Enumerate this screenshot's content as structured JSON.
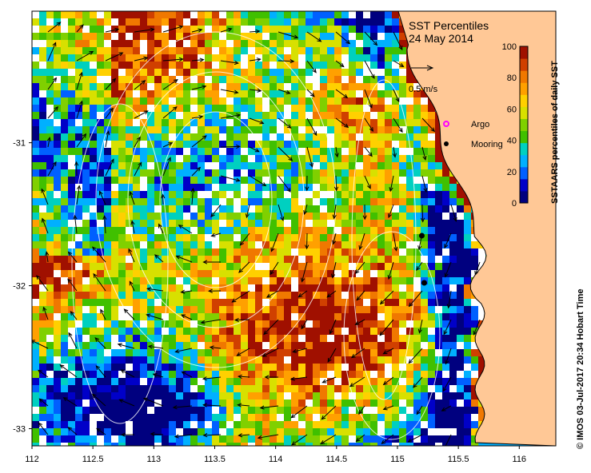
{
  "title": "SST Percentiles",
  "date": "24 May 2014",
  "colorbar": {
    "label": "SSTAARS percentiles of daily SST",
    "ticks": [
      "0",
      "20",
      "40",
      "60",
      "80",
      "100"
    ],
    "colors": [
      "#00007f",
      "#0000c8",
      "#0060ff",
      "#00b0ff",
      "#00d0c0",
      "#40c000",
      "#80d000",
      "#d8e000",
      "#ffd000",
      "#ffa000",
      "#f07800",
      "#d04000",
      "#a01000"
    ]
  },
  "vector_scale": "0.5 m/s",
  "legend": {
    "argo": "Argo",
    "mooring": "Mooring",
    "argo_color": "#ff00ff",
    "mooring_color": "#000000"
  },
  "axes": {
    "x_ticks": [
      "112",
      "112.5",
      "113",
      "113.5",
      "114",
      "114.5",
      "115",
      "115.5",
      "116"
    ],
    "y_ticks": [
      "-31",
      "-32",
      "-33"
    ],
    "x_range": [
      112,
      116.3
    ],
    "y_range": [
      -33.12,
      -30.08
    ]
  },
  "moorings": [
    {
      "lon": 115.2,
      "lat": -31.65
    },
    {
      "lon": 115.22,
      "lat": -31.98
    }
  ],
  "credit": "© IMOS 03-Jul-2017 20:34 Hobart Time",
  "colors": {
    "land": "#ffc896",
    "no_data": "#ffffff",
    "contour": "#ffffff"
  }
}
